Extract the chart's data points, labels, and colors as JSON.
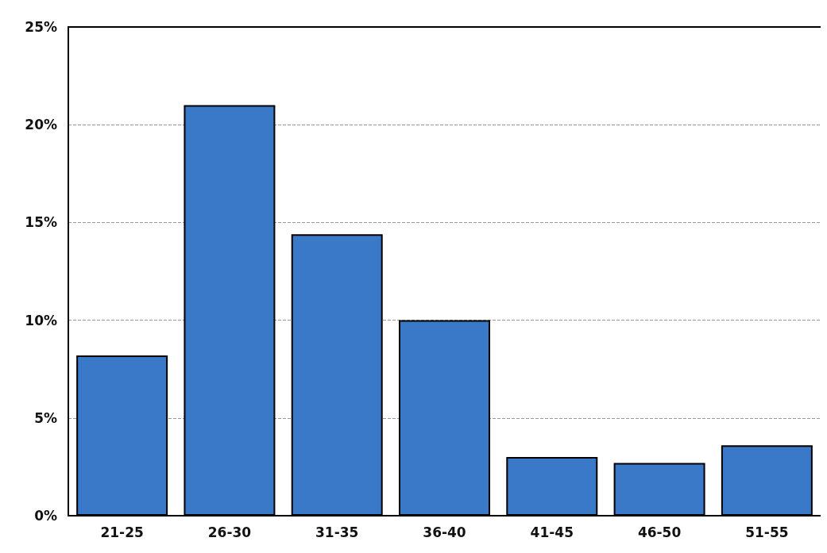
{
  "chart_data": {
    "type": "bar",
    "categories": [
      "21-25",
      "26-30",
      "31-35",
      "36-40",
      "41-45",
      "46-50",
      "51-55"
    ],
    "values": [
      8.2,
      21.0,
      14.4,
      10.0,
      3.0,
      2.7,
      3.6
    ],
    "color": "#3a78c8",
    "ylim": [
      0,
      25
    ],
    "yticks": [
      {
        "value": 0,
        "label": "0%"
      },
      {
        "value": 5,
        "label": "5%"
      },
      {
        "value": 10,
        "label": "10%"
      },
      {
        "value": 15,
        "label": "15%"
      },
      {
        "value": 20,
        "label": "20%"
      },
      {
        "value": 25,
        "label": "25%"
      }
    ],
    "grid": "y"
  }
}
